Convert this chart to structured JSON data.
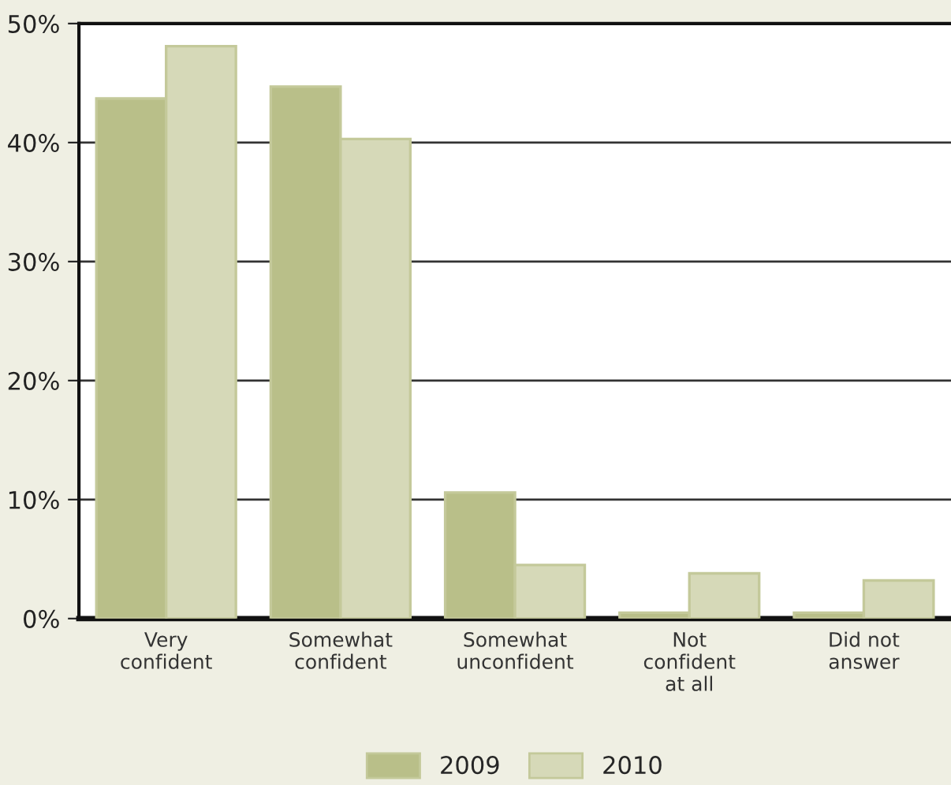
{
  "chart_data": {
    "type": "bar",
    "categories": [
      "Very\nconfident",
      "Somewhat\nconfident",
      "Somewhat\nunconfident",
      "Not\nconfident\nat all",
      "Did not\nanswer"
    ],
    "series": [
      {
        "name": "2009",
        "color": "#b9bf89",
        "values": [
          43.7,
          44.7,
          10.6,
          0.5,
          0.5
        ]
      },
      {
        "name": "2010",
        "color": "#d6d9b8",
        "values": [
          48.1,
          40.3,
          4.5,
          3.8,
          3.2
        ]
      }
    ],
    "ylim": [
      0,
      50
    ],
    "yticks": [
      {
        "value": 0,
        "label": "0%"
      },
      {
        "value": 10,
        "label": "10%"
      },
      {
        "value": 20,
        "label": "20%"
      },
      {
        "value": 30,
        "label": "30%"
      },
      {
        "value": 40,
        "label": "40%"
      },
      {
        "value": 50,
        "label": "50%"
      }
    ],
    "grid": "y",
    "legend": "bottom"
  }
}
